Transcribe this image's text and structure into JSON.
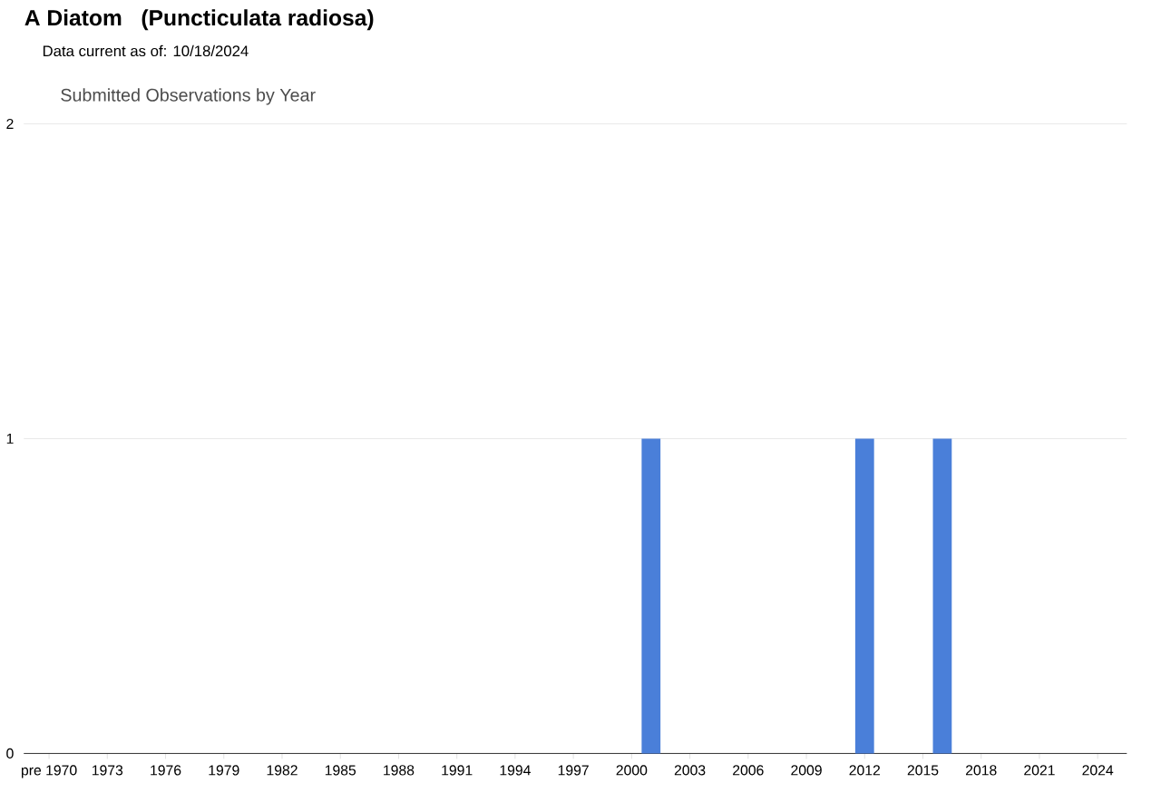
{
  "chart_data": {
    "type": "bar",
    "title": "A Diatom   (Puncticulata radiosa)",
    "subtitle": "Data current as of: 10/18/2024",
    "annotations": [
      "Submitted Observations by Year"
    ],
    "categories": [
      "pre 1970",
      null,
      null,
      "1973",
      null,
      null,
      "1976",
      null,
      null,
      "1979",
      null,
      null,
      "1982",
      null,
      null,
      "1985",
      null,
      null,
      "1988",
      null,
      null,
      "1991",
      null,
      null,
      "1994",
      null,
      null,
      "1997",
      null,
      null,
      "2000",
      null,
      null,
      "2003",
      null,
      null,
      "2006",
      null,
      null,
      "2009",
      null,
      null,
      "2012",
      null,
      null,
      "2015",
      null,
      null,
      "2018",
      null,
      null,
      "2021",
      null,
      null,
      "2024"
    ],
    "values": [
      0,
      0,
      0,
      0,
      0,
      0,
      0,
      0,
      0,
      0,
      0,
      0,
      0,
      0,
      0,
      0,
      0,
      0,
      0,
      0,
      0,
      0,
      0,
      0,
      0,
      0,
      0,
      0,
      0,
      0,
      0,
      1,
      0,
      0,
      0,
      0,
      0,
      0,
      0,
      0,
      0,
      0,
      1,
      0,
      0,
      0,
      1,
      0,
      0,
      0,
      0,
      0,
      0,
      0,
      0
    ],
    "color": "#4a7fd9",
    "ylim": [
      0,
      2
    ],
    "yticks": [
      0,
      1,
      2
    ],
    "grid": "y"
  }
}
